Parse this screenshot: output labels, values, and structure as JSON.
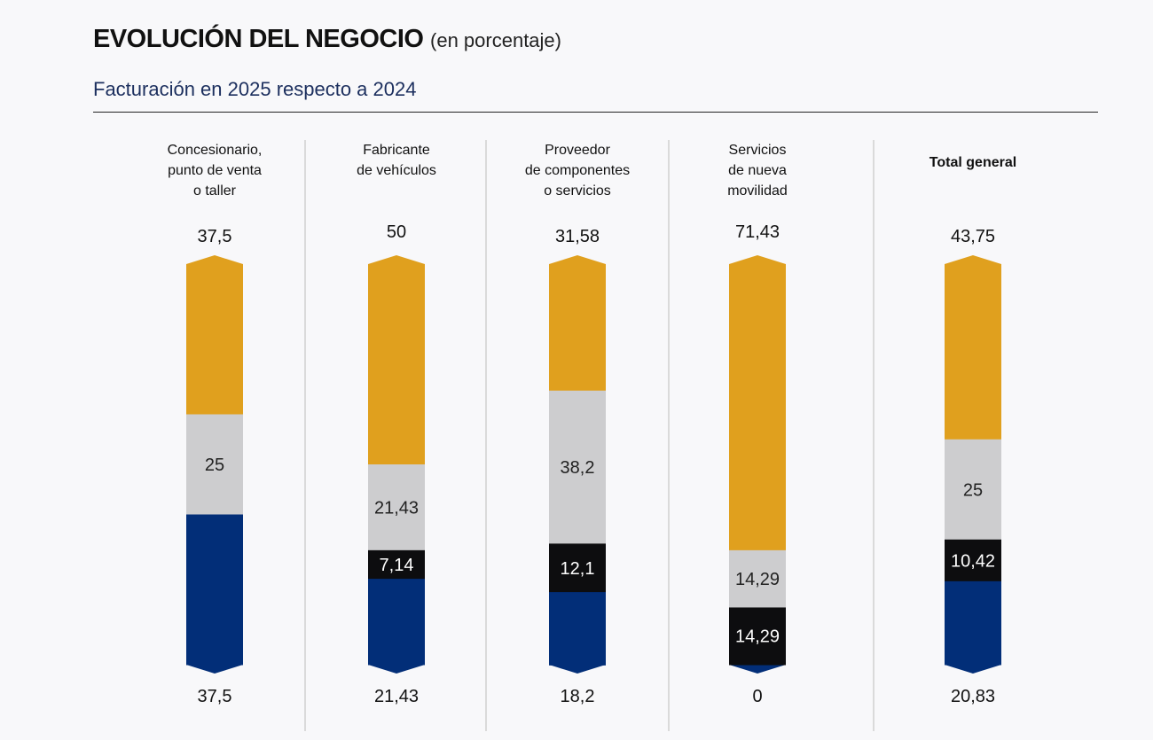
{
  "chart_data": {
    "type": "bar",
    "stacked": true,
    "orientation": "vertical",
    "title": "EVOLUCIÓN DEL NEGOCIO",
    "title_unit": "(en porcentaje)",
    "subtitle": "Facturación en 2025 respecto a 2024",
    "categories": [
      [
        "Concesionario,",
        "punto de venta",
        "o taller"
      ],
      [
        "Fabricante",
        "de vehículos"
      ],
      [
        "Proveedor",
        "de componentes",
        "o servicios"
      ],
      [
        "Servicios",
        "de nueva",
        "movilidad"
      ],
      [
        "Total general"
      ]
    ],
    "series": [
      {
        "color": "#e0a01e",
        "values": [
          37.5,
          50,
          31.58,
          71.43,
          43.75
        ]
      },
      {
        "color": "#cdcdcf",
        "values": [
          25,
          21.43,
          38.2,
          14.29,
          25
        ]
      },
      {
        "color": "#0d0d0f",
        "values": [
          0,
          7.14,
          12.1,
          14.29,
          10.42
        ]
      },
      {
        "color": "#022e78",
        "values": [
          37.5,
          21.43,
          18.2,
          0,
          20.83
        ]
      }
    ],
    "ylim": [
      0,
      100
    ],
    "grid": false,
    "legend": "none"
  }
}
